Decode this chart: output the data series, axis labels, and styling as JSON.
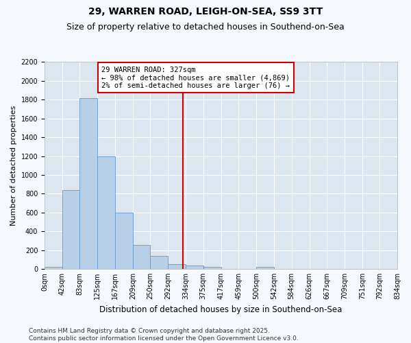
{
  "title1": "29, WARREN ROAD, LEIGH-ON-SEA, SS9 3TT",
  "title2": "Size of property relative to detached houses in Southend-on-Sea",
  "xlabel": "Distribution of detached houses by size in Southend-on-Sea",
  "ylabel": "Number of detached properties",
  "bin_edges": [
    0,
    42,
    83,
    125,
    167,
    209,
    250,
    292,
    334,
    375,
    417,
    459,
    500,
    542,
    584,
    626,
    667,
    709,
    751,
    792,
    834
  ],
  "bar_heights": [
    25,
    840,
    1820,
    1200,
    600,
    255,
    140,
    50,
    35,
    25,
    0,
    0,
    20,
    0,
    0,
    0,
    0,
    0,
    0,
    0
  ],
  "bar_color": "#b8cfe8",
  "bar_edge_color": "#6699cc",
  "vline_x": 327,
  "vline_color": "#cc0000",
  "annotation_title": "29 WARREN ROAD: 327sqm",
  "annotation_line1": "← 98% of detached houses are smaller (4,869)",
  "annotation_line2": "2% of semi-detached houses are larger (76) →",
  "annotation_box_color": "#ffffff",
  "annotation_edge_color": "#cc0000",
  "ylim": [
    0,
    2200
  ],
  "yticks": [
    0,
    200,
    400,
    600,
    800,
    1000,
    1200,
    1400,
    1600,
    1800,
    2000,
    2200
  ],
  "bg_color": "#dce6f0",
  "fig_bg_color": "#f5f8fc",
  "footer1": "Contains HM Land Registry data © Crown copyright and database right 2025.",
  "footer2": "Contains public sector information licensed under the Open Government Licence v3.0.",
  "title1_fontsize": 10,
  "title2_fontsize": 9,
  "xlabel_fontsize": 8.5,
  "ylabel_fontsize": 8,
  "tick_fontsize": 7,
  "annotation_fontsize": 7.5,
  "footer_fontsize": 6.5
}
